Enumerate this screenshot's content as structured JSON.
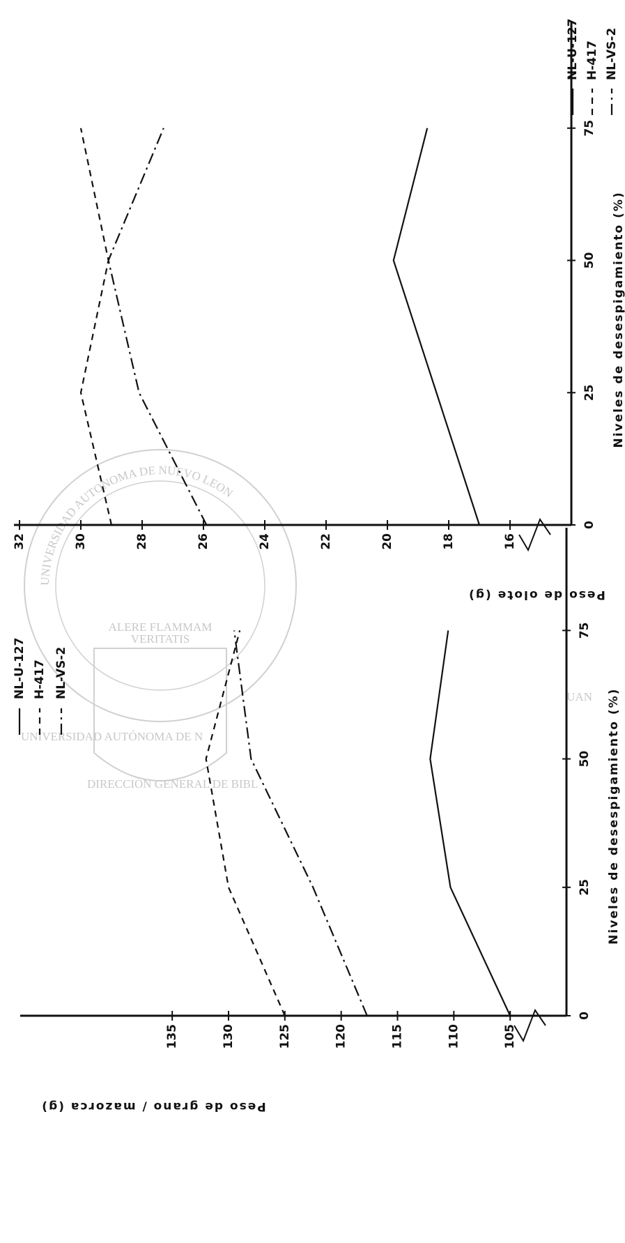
{
  "chart_data": [
    {
      "type": "line",
      "y_label": "Peso de olote (g)",
      "x_label": "Niveles de desespigamiento (%)",
      "x": [
        0,
        25,
        50,
        75
      ],
      "xlim": [
        0,
        95
      ],
      "xticks": [
        0,
        25,
        50,
        75
      ],
      "ylim": [
        14,
        32
      ],
      "yticks": [
        16,
        18,
        20,
        22,
        24,
        26,
        28,
        30,
        32
      ],
      "series": [
        {
          "name": "NL-U-127",
          "color": "#111111",
          "style": "solid",
          "values": [
            17,
            18.4,
            19.8,
            18.7
          ]
        },
        {
          "name": "H-417",
          "color": "#111111",
          "style": "dashed",
          "values": [
            29,
            30,
            29.1,
            30
          ]
        },
        {
          "name": "NL-VS-2",
          "color": "#111111",
          "style": "dashdot",
          "values": [
            25.9,
            28.1,
            29.1,
            27.3
          ]
        }
      ]
    },
    {
      "type": "line",
      "y_label": "Peso de grano / mazorca (g)",
      "x_label": "Niveles de desespigamiento (%)",
      "x": [
        0,
        25,
        50,
        75
      ],
      "xlim": [
        0,
        95
      ],
      "xticks": [
        0,
        25,
        50,
        75
      ],
      "ylim": [
        100,
        148
      ],
      "yticks": [
        105,
        110,
        115,
        120,
        125,
        130,
        135
      ],
      "series": [
        {
          "name": "NL-U-127",
          "color": "#111111",
          "style": "solid",
          "values": [
            105,
            110.3,
            112.1,
            110.5
          ]
        },
        {
          "name": "H-417",
          "color": "#111111",
          "style": "dashed",
          "values": [
            125,
            130,
            132,
            129
          ]
        },
        {
          "name": "NL-VS-2",
          "color": "#111111",
          "style": "dashdot",
          "values": [
            117.7,
            122.5,
            128,
            129.5
          ]
        }
      ]
    }
  ],
  "watermark": {
    "ring": "UNIVERSIDAD AUTONOMA DE NUEVO LEON",
    "motto": [
      "ALERE FLAMMAM",
      "VERITATIS"
    ],
    "big": "UAN",
    "line1": "UNIVERSIDAD AUTÓNOMA DE N",
    "line2": "DIRECCIÓN GENERAL DE BIBL"
  }
}
